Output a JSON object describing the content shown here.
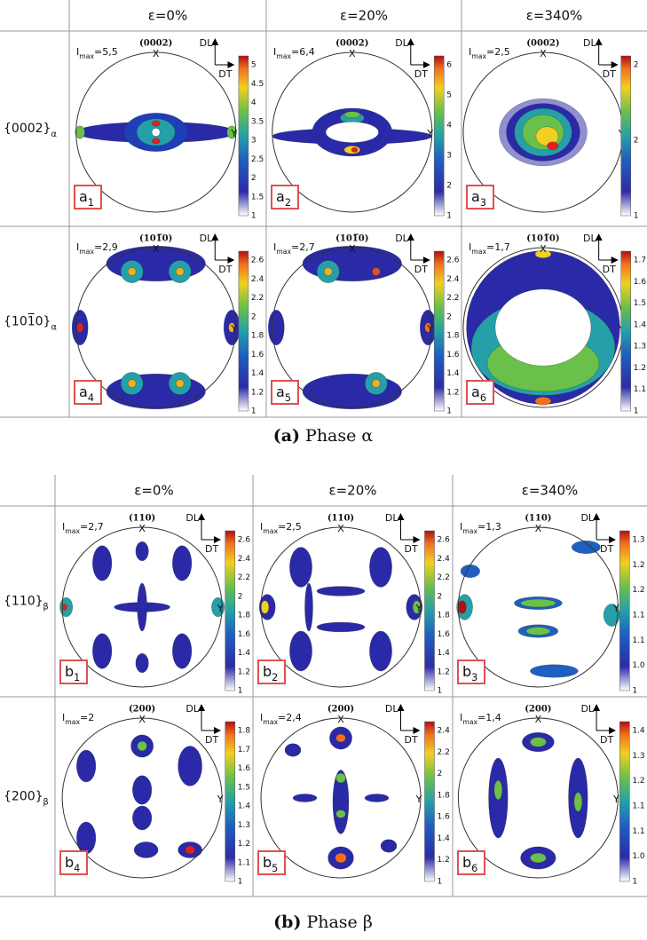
{
  "axes": {
    "dl": "DL",
    "dt": "DT",
    "x": "X",
    "y": "Y"
  },
  "imax_symbol": {
    "base": "I",
    "sub": "max"
  },
  "figure_a": {
    "caption": {
      "label": "(a)",
      "text": "Phase α"
    },
    "columns": [
      "ε=0%",
      "ε=20%",
      "ε=340%"
    ],
    "rows": [
      {
        "text": "{0002}",
        "sub": "α"
      },
      {
        "text": "{101̅0}",
        "sub": "α"
      }
    ],
    "panels": [
      {
        "tag": {
          "letter": "a",
          "sub": "1"
        },
        "imax": "=5,5",
        "pole": "(0002)",
        "colorbar_ticks": [
          "5",
          "4.5",
          "4",
          "3.5",
          "3",
          "2.5",
          "2",
          "1.5",
          "1"
        ]
      },
      {
        "tag": {
          "letter": "a",
          "sub": "2"
        },
        "imax": "=6,4",
        "pole": "(0002)",
        "colorbar_ticks": [
          "6",
          "5",
          "4",
          "3",
          "2",
          "1"
        ]
      },
      {
        "tag": {
          "letter": "a",
          "sub": "3"
        },
        "imax": "=2,5",
        "pole": "(0002)",
        "colorbar_ticks": [
          "2",
          "2",
          "1"
        ]
      },
      {
        "tag": {
          "letter": "a",
          "sub": "4"
        },
        "imax": "=2,9",
        "pole": "(101̅0)",
        "colorbar_ticks": [
          "2.6",
          "2.4",
          "2.2",
          "2",
          "1.8",
          "1.6",
          "1.4",
          "1.2",
          "1"
        ]
      },
      {
        "tag": {
          "letter": "a",
          "sub": "5"
        },
        "imax": "=2,7",
        "pole": "(101̅0)",
        "colorbar_ticks": [
          "2.6",
          "2.4",
          "2.2",
          "2",
          "1.8",
          "1.6",
          "1.4",
          "1.2",
          "1"
        ]
      },
      {
        "tag": {
          "letter": "a",
          "sub": "6"
        },
        "imax": "=1,7",
        "pole": "(101̅0)",
        "colorbar_ticks": [
          "1.7",
          "1.6",
          "1.5",
          "1.4",
          "1.3",
          "1.2",
          "1.1",
          "1"
        ]
      }
    ]
  },
  "figure_b": {
    "caption": {
      "label": "(b)",
      "text": "Phase β"
    },
    "columns": [
      "ε=0%",
      "ε=20%",
      "ε=340%"
    ],
    "rows": [
      {
        "text": "{110}",
        "sub": "β"
      },
      {
        "text": "{200}",
        "sub": "β"
      }
    ],
    "panels": [
      {
        "tag": {
          "letter": "b",
          "sub": "1"
        },
        "imax": "=2,7",
        "pole": "(110)",
        "colorbar_ticks": [
          "2.6",
          "2.4",
          "2.2",
          "2",
          "1.8",
          "1.6",
          "1.4",
          "1.2",
          "1"
        ]
      },
      {
        "tag": {
          "letter": "b",
          "sub": "2"
        },
        "imax": "=2,5",
        "pole": "(110)",
        "colorbar_ticks": [
          "2.6",
          "2.4",
          "2.2",
          "2",
          "1.8",
          "1.6",
          "1.4",
          "1.2",
          "1"
        ]
      },
      {
        "tag": {
          "letter": "b",
          "sub": "3"
        },
        "imax": "=1,3",
        "pole": "(110)",
        "colorbar_ticks": [
          "1.3",
          "1.2",
          "1.2",
          "1.1",
          "1.1",
          "1.0",
          "1"
        ]
      },
      {
        "tag": {
          "letter": "b",
          "sub": "4"
        },
        "imax": "=2",
        "pole": "(200)",
        "colorbar_ticks": [
          "1.8",
          "1.7",
          "1.6",
          "1.5",
          "1.4",
          "1.3",
          "1.2",
          "1.1",
          "1"
        ]
      },
      {
        "tag": {
          "letter": "b",
          "sub": "5"
        },
        "imax": "=2,4",
        "pole": "(200)",
        "colorbar_ticks": [
          "2.4",
          "2.2",
          "2",
          "1.8",
          "1.6",
          "1.4",
          "1.2",
          "1"
        ]
      },
      {
        "tag": {
          "letter": "b",
          "sub": "6"
        },
        "imax": "=1,4",
        "pole": "(200)",
        "colorbar_ticks": [
          "1.4",
          "1.3",
          "1.2",
          "1.1",
          "1.1",
          "1.0",
          "1"
        ]
      }
    ]
  }
}
